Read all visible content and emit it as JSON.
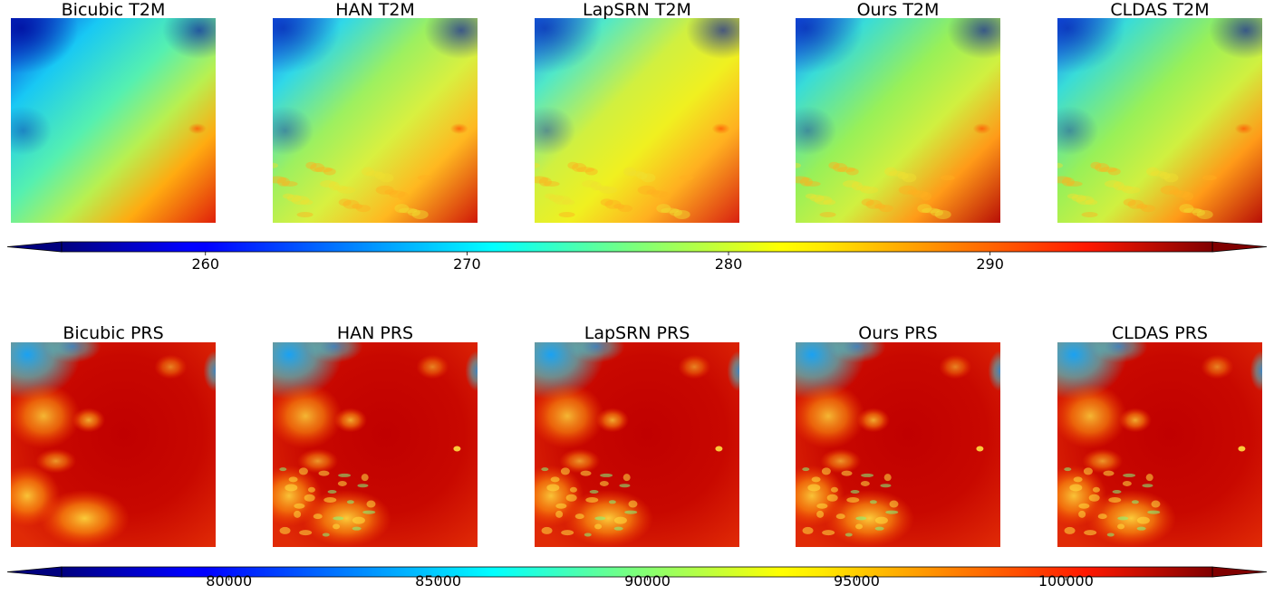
{
  "chart_data": [
    {
      "type": "heatmap",
      "variable": "T2M",
      "panels": [
        {
          "title": "Bicubic T2M",
          "method": "Bicubic"
        },
        {
          "title": "HAN T2M",
          "method": "HAN"
        },
        {
          "title": "LapSRN T2M",
          "method": "LapSRN"
        },
        {
          "title": "Ours T2M",
          "method": "Ours"
        },
        {
          "title": "CLDAS T2M",
          "method": "CLDAS"
        }
      ],
      "colormap": "jet",
      "colorbar": {
        "orientation": "horizontal",
        "extend": "both",
        "range": [
          254.5,
          298.5
        ],
        "ticks": [
          260,
          270,
          280,
          290
        ],
        "tick_labels": [
          "260",
          "270",
          "280",
          "290"
        ]
      },
      "axes_visible": false
    },
    {
      "type": "heatmap",
      "variable": "PRS",
      "panels": [
        {
          "title": "Bicubic PRS",
          "method": "Bicubic"
        },
        {
          "title": "HAN PRS",
          "method": "HAN"
        },
        {
          "title": "LapSRN PRS",
          "method": "LapSRN"
        },
        {
          "title": "Ours PRS",
          "method": "Ours"
        },
        {
          "title": "CLDAS PRS",
          "method": "CLDAS"
        }
      ],
      "colormap": "jet",
      "colorbar": {
        "orientation": "horizontal",
        "extend": "both",
        "range": [
          76000,
          103500
        ],
        "ticks": [
          80000,
          85000,
          90000,
          95000,
          100000
        ],
        "tick_labels": [
          "80000",
          "85000",
          "90000",
          "95000",
          "100000"
        ]
      },
      "axes_visible": false
    }
  ]
}
